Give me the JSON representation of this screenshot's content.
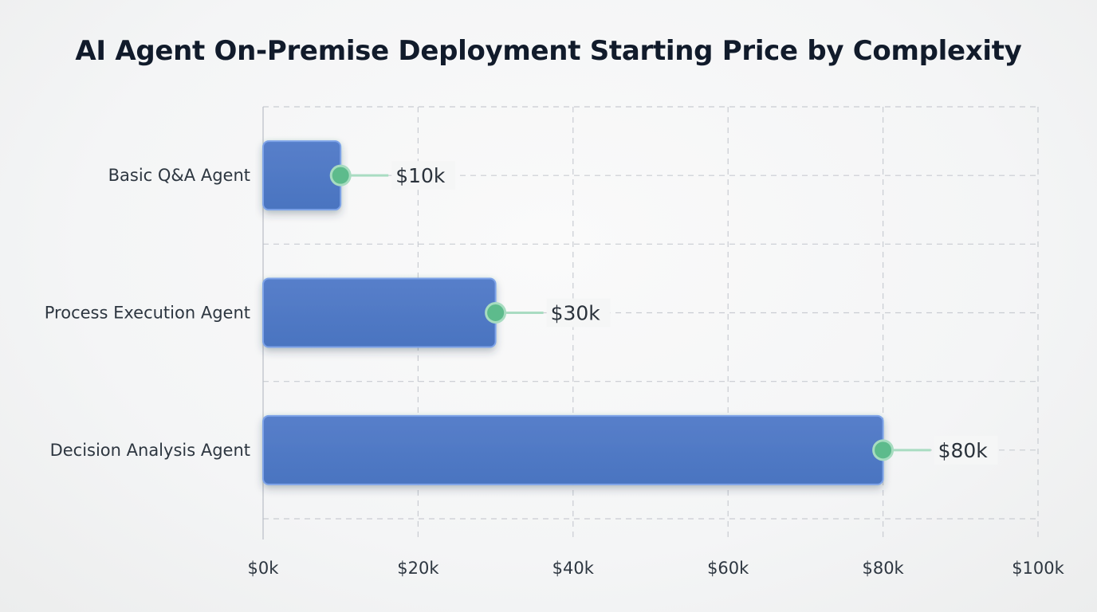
{
  "chart_data": {
    "type": "bar",
    "orientation": "horizontal",
    "title": "AI Agent On-Premise Deployment Starting Price by Complexity",
    "xlabel": "",
    "ylabel": "",
    "categories": [
      "Basic Q&A Agent",
      "Process Execution Agent",
      "Decision Analysis Agent"
    ],
    "values": [
      10,
      30,
      80
    ],
    "value_labels": [
      "$10k",
      "$30k",
      "$80k"
    ],
    "unit": "$k",
    "xlim": [
      0,
      100
    ],
    "xticks": [
      0,
      20,
      40,
      60,
      80,
      100
    ],
    "xtick_labels": [
      "$0k",
      "$20k",
      "$40k",
      "$60k",
      "$80k",
      "$100k"
    ],
    "grid": true,
    "legend": "none",
    "colors": {
      "bar": "#4f79c4",
      "bar_border": "#7ea3e8",
      "marker": "#5dbb8c",
      "marker_ring": "#a7dcc0",
      "connector": "#a9dcc2",
      "grid": "#c9ccd2"
    }
  }
}
